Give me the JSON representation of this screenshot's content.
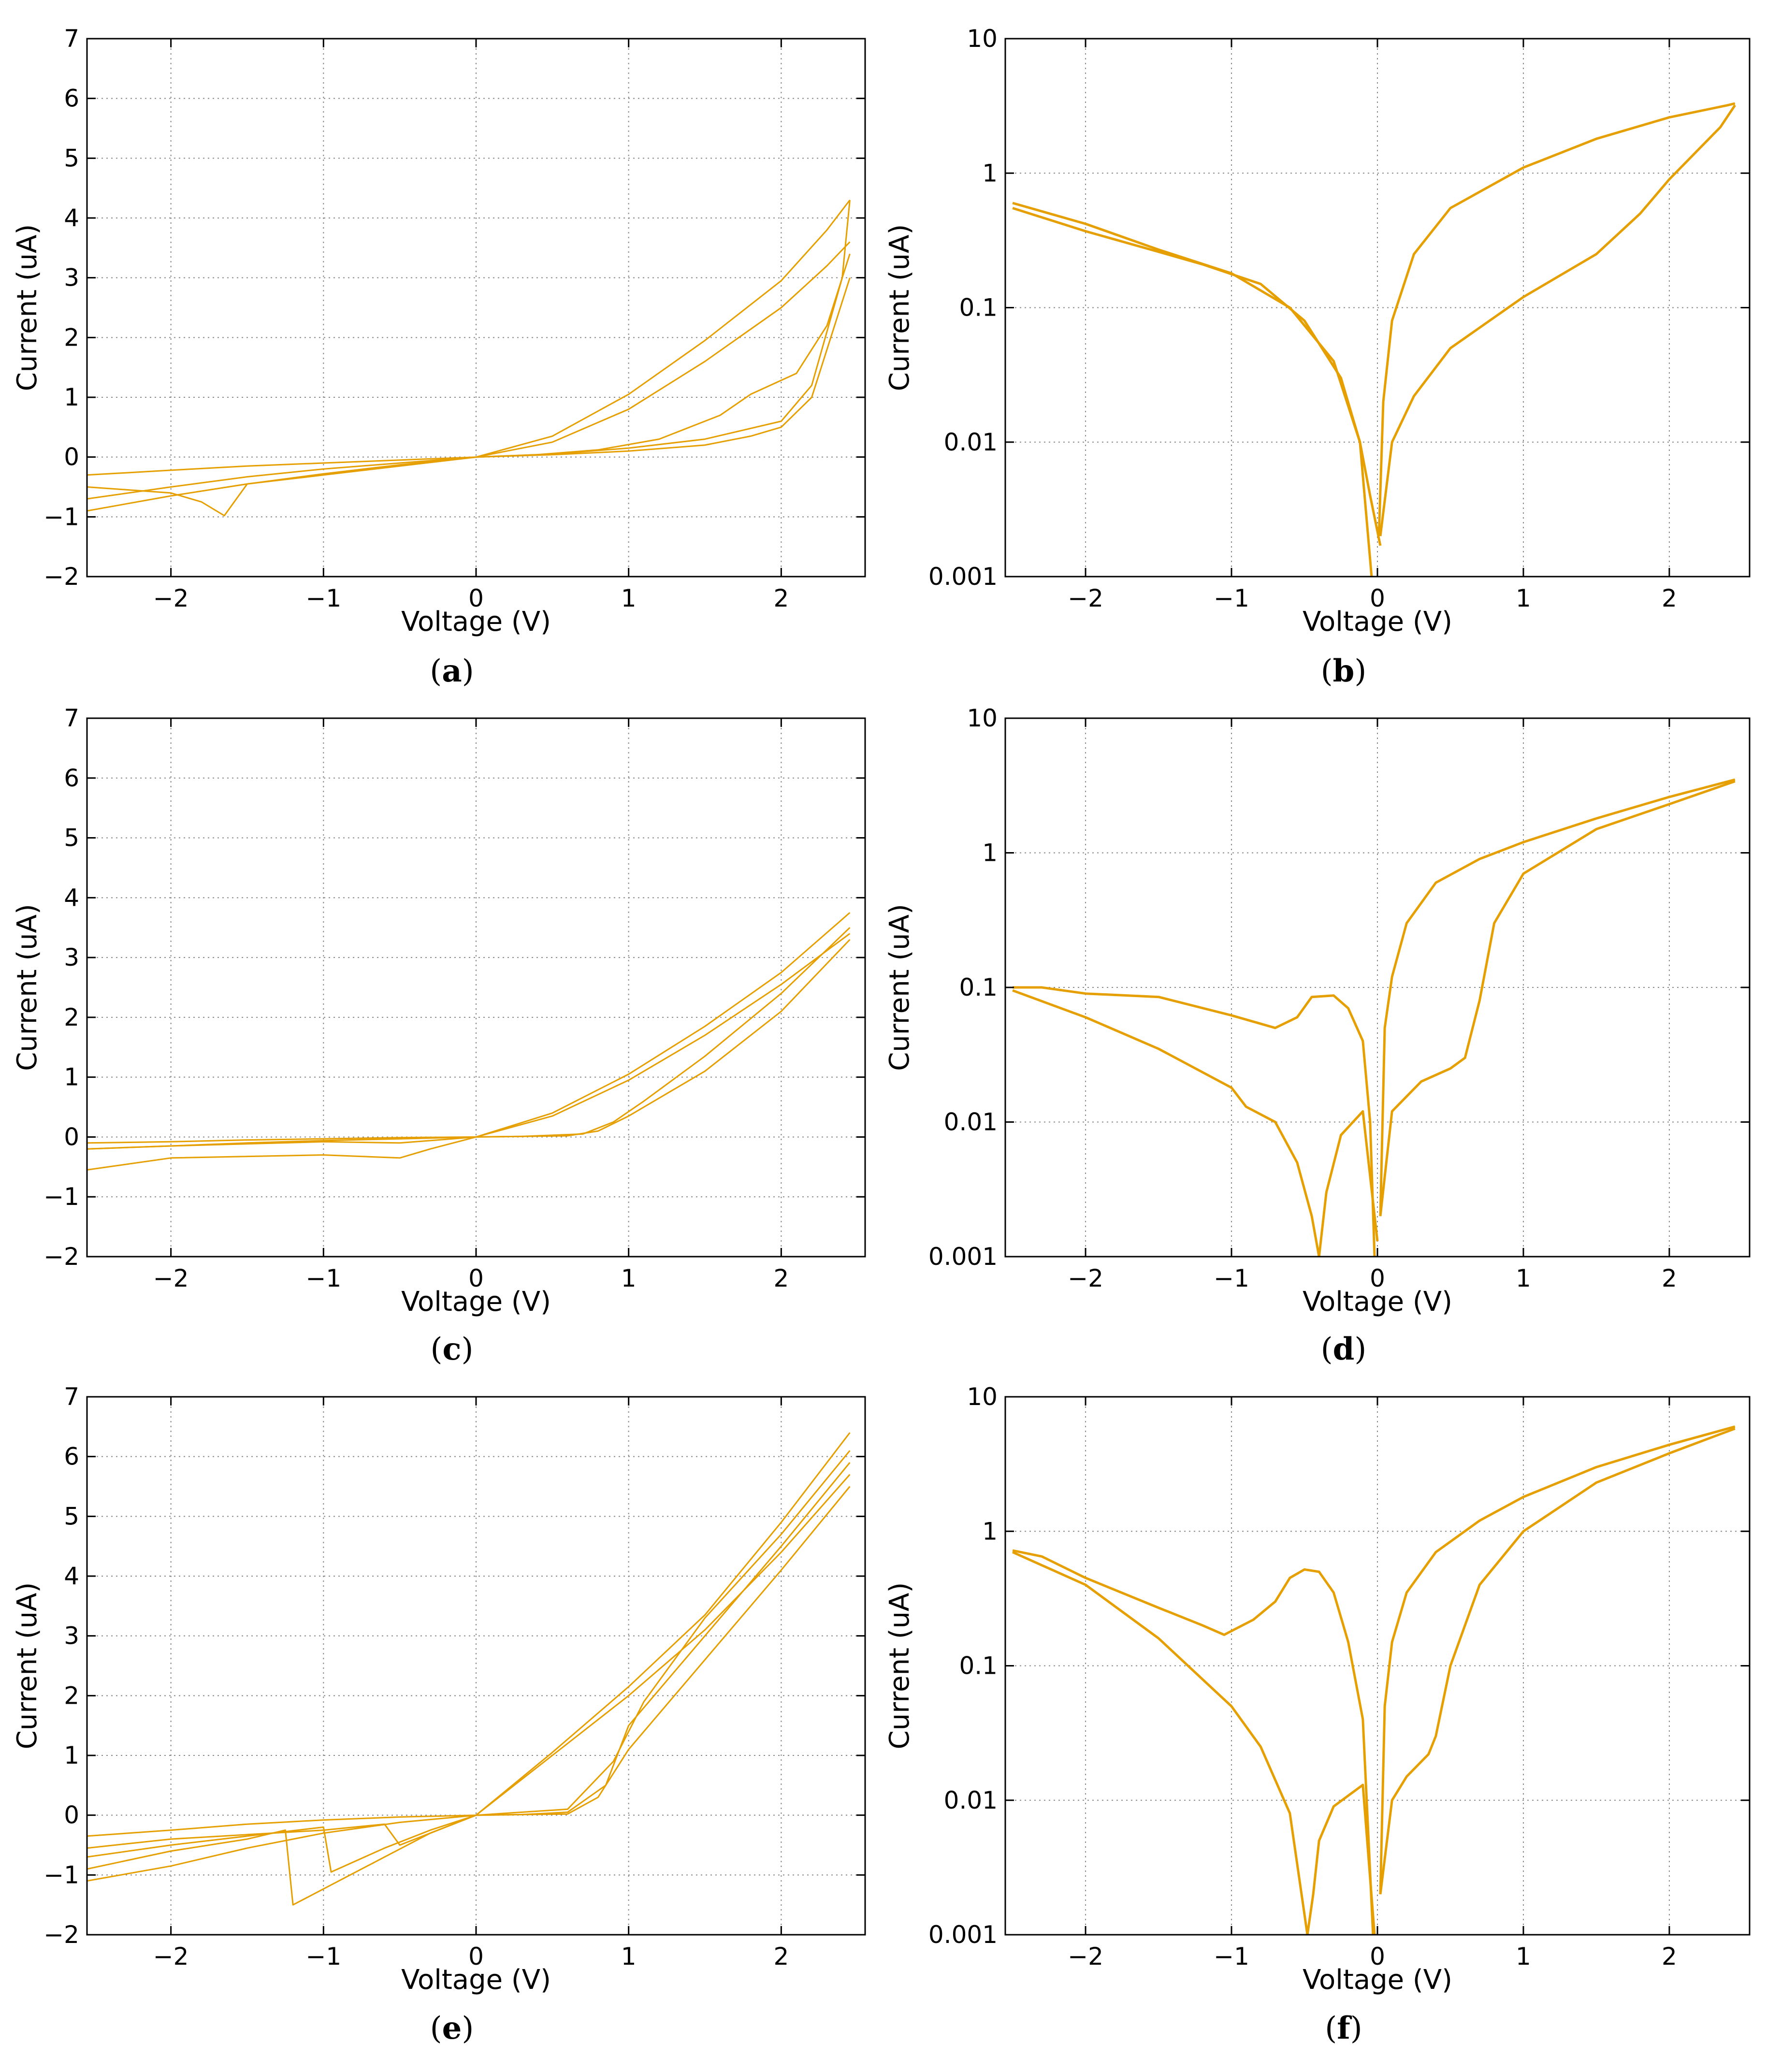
{
  "colors": {
    "curve": "#E69F00",
    "frame": "#000000",
    "grid": "#888888"
  },
  "chart_data": [
    {
      "panel": "a",
      "type": "line",
      "yscale": "linear",
      "xlabel": "Voltage (V)",
      "ylabel": "Current (uA)",
      "xlim": [
        -2.55,
        2.55
      ],
      "ylim": [
        -2,
        7
      ],
      "xticks": [
        -2,
        -1,
        0,
        1,
        2
      ],
      "xtick_labels": [
        "−2",
        "−1",
        "0",
        "1",
        "2"
      ],
      "yticks": [
        -2,
        -1,
        0,
        1,
        2,
        3,
        4,
        5,
        6,
        7
      ],
      "ytick_labels": [
        "−2",
        "−1",
        "0",
        "1",
        "2",
        "3",
        "4",
        "5",
        "6",
        "7"
      ],
      "grid": true,
      "caption_label": "a",
      "series": [
        {
          "x": [
            -2.55,
            -2,
            -1.5,
            -1,
            -0.5,
            0,
            0.5,
            1,
            1.5,
            2,
            2.3,
            2.45
          ],
          "y": [
            -0.9,
            -0.65,
            -0.45,
            -0.28,
            -0.13,
            0,
            0.35,
            1.05,
            1.95,
            2.95,
            3.8,
            4.3
          ]
        },
        {
          "x": [
            -2.55,
            -2,
            -1.5,
            -1,
            -0.5,
            0,
            0.5,
            1,
            1.5,
            2,
            2.3,
            2.45
          ],
          "y": [
            -0.3,
            -0.22,
            -0.15,
            -0.1,
            -0.05,
            0,
            0.25,
            0.8,
            1.6,
            2.5,
            3.2,
            3.6
          ]
        },
        {
          "x": [
            2.45,
            2.4,
            2.2,
            2,
            1.5,
            1,
            0.5,
            0,
            -0.5,
            -1,
            -1.5,
            -2,
            -2.55
          ],
          "y": [
            4.3,
            3.0,
            1.2,
            0.6,
            0.3,
            0.15,
            0.05,
            0,
            -0.1,
            -0.2,
            -0.33,
            -0.5,
            -0.7
          ]
        },
        {
          "x": [
            2.45,
            2.3,
            2.1,
            1.8,
            1.6,
            1.2,
            0.8,
            0.4,
            0
          ],
          "y": [
            3.4,
            2.2,
            1.4,
            1.05,
            0.7,
            0.3,
            0.12,
            0.04,
            0
          ]
        },
        {
          "x": [
            2.45,
            2.2,
            2,
            1.8,
            1.5,
            1,
            0.5,
            0,
            -0.5,
            -1,
            -1.5,
            -1.65,
            -1.8,
            -2,
            -2.55
          ],
          "y": [
            3.0,
            1.0,
            0.5,
            0.35,
            0.2,
            0.1,
            0.04,
            0,
            -0.15,
            -0.3,
            -0.45,
            -0.98,
            -0.75,
            -0.6,
            -0.5
          ]
        }
      ]
    },
    {
      "panel": "b",
      "type": "line",
      "yscale": "log",
      "xlabel": "Voltage (V)",
      "ylabel": "Current (uA)",
      "xlim": [
        -2.55,
        2.55
      ],
      "ylim": [
        0.001,
        10
      ],
      "xticks": [
        -2,
        -1,
        0,
        1,
        2
      ],
      "xtick_labels": [
        "−2",
        "−1",
        "0",
        "1",
        "2"
      ],
      "yticks": [
        0.001,
        0.01,
        0.1,
        1,
        10
      ],
      "ytick_labels": [
        "0.001",
        "0.01",
        "0.1",
        "1",
        "10"
      ],
      "grid": true,
      "caption_label": "b",
      "series": [
        {
          "x": [
            -2.5,
            -2,
            -1.5,
            -1,
            -0.6,
            -0.3,
            -0.12,
            -0.04
          ],
          "y": [
            0.6,
            0.42,
            0.27,
            0.18,
            0.1,
            0.04,
            0.01,
            0.001
          ]
        },
        {
          "x": [
            -2.5,
            -2,
            -1.5,
            -1.2,
            -0.8,
            -0.5,
            -0.25,
            -0.12,
            -0.05,
            0.02
          ],
          "y": [
            0.55,
            0.37,
            0.26,
            0.21,
            0.15,
            0.08,
            0.03,
            0.01,
            0.004,
            0.0017
          ]
        },
        {
          "x": [
            0.01,
            0.04,
            0.1,
            0.25,
            0.5,
            1,
            1.5,
            2,
            2.4,
            2.45
          ],
          "y": [
            0.002,
            0.02,
            0.08,
            0.25,
            0.55,
            1.1,
            1.8,
            2.6,
            3.2,
            3.3
          ]
        },
        {
          "x": [
            2.45,
            2.35,
            2.2,
            2,
            1.8,
            1.5,
            1,
            0.5,
            0.25,
            0.1,
            0.02
          ],
          "y": [
            3.2,
            2.2,
            1.5,
            0.9,
            0.5,
            0.25,
            0.12,
            0.05,
            0.022,
            0.01,
            0.002
          ]
        }
      ]
    },
    {
      "panel": "c",
      "type": "line",
      "yscale": "linear",
      "xlabel": "Voltage (V)",
      "ylabel": "Current (uA)",
      "xlim": [
        -2.55,
        2.55
      ],
      "ylim": [
        -2,
        7
      ],
      "xticks": [
        -2,
        -1,
        0,
        1,
        2
      ],
      "xtick_labels": [
        "−2",
        "−1",
        "0",
        "1",
        "2"
      ],
      "yticks": [
        -2,
        -1,
        0,
        1,
        2,
        3,
        4,
        5,
        6,
        7
      ],
      "ytick_labels": [
        "−2",
        "−1",
        "0",
        "1",
        "2",
        "3",
        "4",
        "5",
        "6",
        "7"
      ],
      "grid": true,
      "caption_label": "c",
      "series": [
        {
          "x": [
            -2.55,
            -2,
            -1.5,
            -1,
            -0.5,
            0,
            0.5,
            1,
            1.5,
            2,
            2.45
          ],
          "y": [
            -0.2,
            -0.15,
            -0.1,
            -0.06,
            -0.03,
            0,
            0.4,
            1.05,
            1.85,
            2.75,
            3.75
          ]
        },
        {
          "x": [
            -2.55,
            -2,
            -1.5,
            -1,
            -0.5,
            0,
            0.5,
            1,
            1.5,
            2,
            2.45
          ],
          "y": [
            -0.1,
            -0.08,
            -0.05,
            -0.03,
            -0.01,
            0,
            0.35,
            0.95,
            1.7,
            2.55,
            3.4
          ]
        },
        {
          "x": [
            2.45,
            2,
            1.5,
            1,
            0.8,
            0.6,
            0.3,
            0,
            -0.3,
            -0.5,
            -1,
            -2,
            -2.55
          ],
          "y": [
            3.3,
            2.1,
            1.1,
            0.35,
            0.1,
            0.02,
            0.01,
            0,
            -0.2,
            -0.35,
            -0.3,
            -0.35,
            -0.55
          ]
        },
        {
          "x": [
            2.45,
            2,
            1.5,
            1.1,
            0.9,
            0.7,
            0.3,
            0,
            -0.5,
            -1,
            -2,
            -2.55
          ],
          "y": [
            3.5,
            2.4,
            1.35,
            0.6,
            0.25,
            0.05,
            0.01,
            0,
            -0.1,
            -0.08,
            -0.15,
            -0.2
          ]
        }
      ]
    },
    {
      "panel": "d",
      "type": "line",
      "yscale": "log",
      "xlabel": "Voltage (V)",
      "ylabel": "Current (uA)",
      "xlim": [
        -2.55,
        2.55
      ],
      "ylim": [
        0.001,
        10
      ],
      "xticks": [
        -2,
        -1,
        0,
        1,
        2
      ],
      "xtick_labels": [
        "−2",
        "−1",
        "0",
        "1",
        "2"
      ],
      "yticks": [
        0.001,
        0.01,
        0.1,
        1,
        10
      ],
      "ytick_labels": [
        "0.001",
        "0.01",
        "0.1",
        "1",
        "10"
      ],
      "grid": true,
      "caption_label": "d",
      "series": [
        {
          "x": [
            -2.5,
            -2.3,
            -2,
            -1.5,
            -1,
            -0.7,
            -0.55,
            -0.45,
            -0.3,
            -0.2,
            -0.1,
            -0.05,
            -0.02
          ],
          "y": [
            0.1,
            0.1,
            0.09,
            0.085,
            0.062,
            0.05,
            0.06,
            0.085,
            0.087,
            0.07,
            0.04,
            0.01,
            0.001
          ]
        },
        {
          "x": [
            -2.5,
            -2,
            -1.5,
            -1,
            -0.9,
            -0.7,
            -0.55,
            -0.45,
            -0.4,
            -0.35,
            -0.25,
            -0.1,
            0
          ],
          "y": [
            0.095,
            0.06,
            0.035,
            0.018,
            0.013,
            0.01,
            0.005,
            0.002,
            0.001,
            0.003,
            0.008,
            0.012,
            0.0013
          ]
        },
        {
          "x": [
            0.02,
            0.05,
            0.1,
            0.2,
            0.4,
            0.7,
            1,
            1.5,
            2,
            2.45
          ],
          "y": [
            0.002,
            0.05,
            0.12,
            0.3,
            0.6,
            0.9,
            1.2,
            1.8,
            2.6,
            3.5
          ]
        },
        {
          "x": [
            2.45,
            2,
            1.5,
            1,
            0.8,
            0.7,
            0.6,
            0.5,
            0.3,
            0.1,
            0.02
          ],
          "y": [
            3.4,
            2.3,
            1.5,
            0.7,
            0.3,
            0.08,
            0.03,
            0.025,
            0.02,
            0.012,
            0.002
          ]
        }
      ]
    },
    {
      "panel": "e",
      "type": "line",
      "yscale": "linear",
      "xlabel": "Voltage (V)",
      "ylabel": "Current (uA)",
      "xlim": [
        -2.55,
        2.55
      ],
      "ylim": [
        -2,
        7
      ],
      "xticks": [
        -2,
        -1,
        0,
        1,
        2
      ],
      "xtick_labels": [
        "−2",
        "−1",
        "0",
        "1",
        "2"
      ],
      "yticks": [
        -2,
        -1,
        0,
        1,
        2,
        3,
        4,
        5,
        6,
        7
      ],
      "ytick_labels": [
        "−2",
        "−1",
        "0",
        "1",
        "2",
        "3",
        "4",
        "5",
        "6",
        "7"
      ],
      "grid": true,
      "caption_label": "e",
      "series": [
        {
          "x": [
            -2.55,
            -2,
            -1.5,
            -1,
            -0.5,
            0,
            0.5,
            1,
            1.5,
            2,
            2.45
          ],
          "y": [
            -1.1,
            -0.85,
            -0.55,
            -0.3,
            -0.12,
            0,
            1.05,
            2.15,
            3.35,
            4.9,
            6.4
          ]
        },
        {
          "x": [
            -2.55,
            -2,
            -1.5,
            -1,
            -0.5,
            0,
            0.5,
            1,
            1.5,
            2,
            2.45
          ],
          "y": [
            -0.35,
            -0.25,
            -0.15,
            -0.08,
            -0.03,
            0,
            1.0,
            2.0,
            3.1,
            4.4,
            5.7
          ]
        },
        {
          "x": [
            2.45,
            2,
            1.5,
            1,
            0.8,
            0.6,
            0.3,
            0,
            -0.3,
            -0.6,
            -0.9,
            -1.2,
            -1.25,
            -1.5,
            -2,
            -2.55
          ],
          "y": [
            5.5,
            4.1,
            2.6,
            1.1,
            0.3,
            0.02,
            0.01,
            0,
            -0.3,
            -0.7,
            -1.1,
            -1.5,
            -0.25,
            -0.4,
            -0.6,
            -0.9
          ]
        },
        {
          "x": [
            2.45,
            2,
            1.5,
            1,
            0.85,
            0.6,
            0.3,
            0,
            -0.3,
            -0.6,
            -0.95,
            -1,
            -1.5,
            -2,
            -2.55
          ],
          "y": [
            5.9,
            4.5,
            3.0,
            1.5,
            0.5,
            0.05,
            0.01,
            0,
            -0.25,
            -0.55,
            -0.95,
            -0.2,
            -0.35,
            -0.5,
            -0.7
          ]
        },
        {
          "x": [
            2.45,
            2,
            1.5,
            1.1,
            0.9,
            0.6,
            0,
            -0.2,
            -0.5,
            -0.6,
            -1,
            -2,
            -2.55
          ],
          "y": [
            6.1,
            4.7,
            3.3,
            1.9,
            0.9,
            0.1,
            0,
            -0.2,
            -0.5,
            -0.15,
            -0.25,
            -0.4,
            -0.55
          ]
        }
      ]
    },
    {
      "panel": "f",
      "type": "line",
      "yscale": "log",
      "xlabel": "Voltage (V)",
      "ylabel": "Current (uA)",
      "xlim": [
        -2.55,
        2.55
      ],
      "ylim": [
        0.001,
        10
      ],
      "xticks": [
        -2,
        -1,
        0,
        1,
        2
      ],
      "xtick_labels": [
        "−2",
        "−1",
        "0",
        "1",
        "2"
      ],
      "yticks": [
        0.001,
        0.01,
        0.1,
        1,
        10
      ],
      "ytick_labels": [
        "0.001",
        "0.01",
        "0.1",
        "1",
        "10"
      ],
      "grid": true,
      "caption_label": "f",
      "series": [
        {
          "x": [
            -2.5,
            -2.3,
            -2,
            -1.5,
            -1.2,
            -1.05,
            -0.85,
            -0.7,
            -0.6,
            -0.5,
            -0.4,
            -0.3,
            -0.2,
            -0.1,
            -0.03
          ],
          "y": [
            0.72,
            0.65,
            0.45,
            0.27,
            0.2,
            0.17,
            0.22,
            0.3,
            0.45,
            0.52,
            0.5,
            0.35,
            0.15,
            0.04,
            0.001
          ]
        },
        {
          "x": [
            -2.5,
            -2,
            -1.5,
            -1,
            -0.8,
            -0.6,
            -0.52,
            -0.48,
            -0.44,
            -0.4,
            -0.3,
            -0.1,
            -0.02
          ],
          "y": [
            0.7,
            0.4,
            0.16,
            0.05,
            0.025,
            0.008,
            0.002,
            0.001,
            0.002,
            0.005,
            0.009,
            0.013,
            0.001
          ]
        },
        {
          "x": [
            0.02,
            0.05,
            0.1,
            0.2,
            0.4,
            0.7,
            1,
            1.5,
            2,
            2.45
          ],
          "y": [
            0.002,
            0.05,
            0.15,
            0.35,
            0.7,
            1.2,
            1.8,
            3.0,
            4.4,
            6.0
          ]
        },
        {
          "x": [
            2.45,
            2,
            1.5,
            1,
            0.7,
            0.5,
            0.4,
            0.35,
            0.2,
            0.1,
            0.02
          ],
          "y": [
            5.8,
            3.8,
            2.3,
            1.0,
            0.4,
            0.1,
            0.03,
            0.022,
            0.015,
            0.01,
            0.002
          ]
        }
      ]
    }
  ]
}
